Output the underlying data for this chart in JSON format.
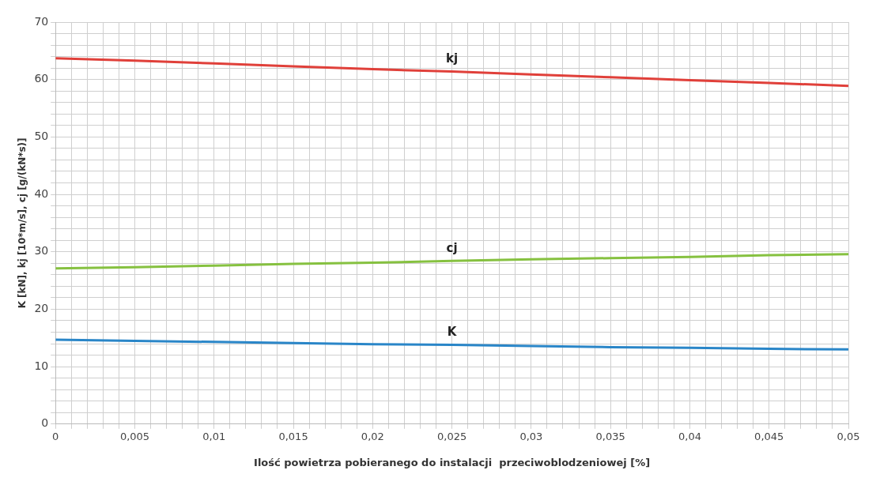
{
  "chart_data": {
    "type": "line",
    "xlabel": "Ilość powietrza pobieranego do instalacji  przeciwoblodzeniowej [%]",
    "ylabel": "K [kN], kj [10*m/s], cj [g/(kN*s)]",
    "x": [
      0,
      0.005,
      0.01,
      0.015,
      0.02,
      0.025,
      0.03,
      0.035,
      0.04,
      0.045,
      0.05
    ],
    "series": [
      {
        "name": "kj",
        "color": "#e0403a",
        "values": [
          63.7,
          63.3,
          62.8,
          62.3,
          61.8,
          61.4,
          60.9,
          60.4,
          59.9,
          59.4,
          58.9
        ]
      },
      {
        "name": "cj",
        "color": "#86c140",
        "values": [
          27.1,
          27.3,
          27.6,
          27.9,
          28.1,
          28.4,
          28.7,
          28.9,
          29.1,
          29.4,
          29.6
        ]
      },
      {
        "name": "K",
        "color": "#2a86c8",
        "values": [
          14.7,
          14.5,
          14.3,
          14.1,
          13.9,
          13.8,
          13.6,
          13.4,
          13.3,
          13.1,
          13.0
        ]
      }
    ],
    "xlim": [
      0,
      0.05
    ],
    "xticks": [
      0,
      {
        "value": 0.001,
        "label": null
      },
      {
        "value": 0.002,
        "label": null
      },
      {
        "value": 0.003,
        "label": null
      },
      {
        "value": 0.004,
        "label": null
      },
      {
        "value": 0.005,
        "label": "0,005"
      },
      {
        "value": 0.006,
        "label": null
      },
      {
        "value": 0.007,
        "label": null
      },
      {
        "value": 0.008,
        "label": null
      },
      {
        "value": 0.009,
        "label": null
      },
      {
        "value": 0.01,
        "label": "0,01"
      },
      {
        "value": 0.011,
        "label": null
      },
      {
        "value": 0.012,
        "label": null
      },
      {
        "value": 0.013,
        "label": null
      },
      {
        "value": 0.014,
        "label": null
      },
      {
        "value": 0.015,
        "label": "0,015"
      },
      {
        "value": 0.016,
        "label": null
      },
      {
        "value": 0.017,
        "label": null
      },
      {
        "value": 0.018,
        "label": null
      },
      {
        "value": 0.019,
        "label": null
      },
      {
        "value": 0.02,
        "label": "0,02"
      },
      {
        "value": 0.021,
        "label": null
      },
      {
        "value": 0.022,
        "label": null
      },
      {
        "value": 0.023,
        "label": null
      },
      {
        "value": 0.024,
        "label": null
      },
      {
        "value": 0.025,
        "label": "0,025"
      },
      {
        "value": 0.026,
        "label": null
      },
      {
        "value": 0.027,
        "label": null
      },
      {
        "value": 0.028,
        "label": null
      },
      {
        "value": 0.029,
        "label": null
      },
      {
        "value": 0.03,
        "label": "0,03"
      },
      {
        "value": 0.031,
        "label": null
      },
      {
        "value": 0.032,
        "label": null
      },
      {
        "value": 0.033,
        "label": null
      },
      {
        "value": 0.034,
        "label": null
      },
      {
        "value": 0.035,
        "label": "0,035"
      },
      {
        "value": 0.036,
        "label": null
      },
      {
        "value": 0.037,
        "label": null
      },
      {
        "value": 0.038,
        "label": null
      },
      {
        "value": 0.039,
        "label": null
      },
      {
        "value": 0.04,
        "label": "0,04"
      },
      {
        "value": 0.041,
        "label": null
      },
      {
        "value": 0.042,
        "label": null
      },
      {
        "value": 0.043,
        "label": null
      },
      {
        "value": 0.044,
        "label": null
      },
      {
        "value": 0.045,
        "label": "0,045"
      },
      {
        "value": 0.046,
        "label": null
      },
      {
        "value": 0.047,
        "label": null
      },
      {
        "value": 0.048,
        "label": null
      },
      {
        "value": 0.049,
        "label": null
      },
      {
        "value": 0.05,
        "label": "0,05"
      }
    ],
    "ylim": [
      0,
      70
    ],
    "yticks": [
      0,
      {
        "value": 2,
        "label": null
      },
      {
        "value": 4,
        "label": null
      },
      {
        "value": 6,
        "label": null
      },
      {
        "value": 8,
        "label": null
      },
      10,
      {
        "value": 12,
        "label": null
      },
      {
        "value": 14,
        "label": null
      },
      {
        "value": 16,
        "label": null
      },
      {
        "value": 18,
        "label": null
      },
      20,
      {
        "value": 22,
        "label": null
      },
      {
        "value": 24,
        "label": null
      },
      {
        "value": 26,
        "label": null
      },
      {
        "value": 28,
        "label": null
      },
      30,
      {
        "value": 32,
        "label": null
      },
      {
        "value": 34,
        "label": null
      },
      {
        "value": 36,
        "label": null
      },
      {
        "value": 38,
        "label": null
      },
      40,
      {
        "value": 42,
        "label": null
      },
      {
        "value": 44,
        "label": null
      },
      {
        "value": 46,
        "label": null
      },
      {
        "value": 48,
        "label": null
      },
      50,
      {
        "value": 52,
        "label": null
      },
      {
        "value": 54,
        "label": null
      },
      {
        "value": 56,
        "label": null
      },
      {
        "value": 58,
        "label": null
      },
      60,
      {
        "value": 62,
        "label": null
      },
      {
        "value": 64,
        "label": null
      },
      {
        "value": 66,
        "label": null
      },
      {
        "value": 68,
        "label": null
      },
      70
    ],
    "grid": true,
    "legend": false,
    "marker": "none",
    "line_style": "solid"
  }
}
